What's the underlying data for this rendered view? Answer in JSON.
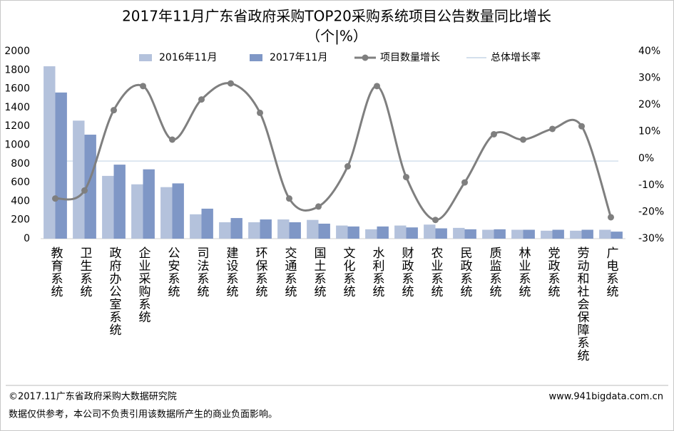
{
  "chart_data": {
    "type": "bar_line",
    "title": "2017年11月广东省政府采购TOP20采购系统项目公告数量同比增长",
    "subtitle": "（个|%）",
    "categories": [
      "教育系统",
      "卫生系统",
      "政府办公室系统",
      "企业采购系统",
      "公安系统",
      "司法系统",
      "建设系统",
      "环保系统",
      "交通系统",
      "国土系统",
      "文化系统",
      "水利系统",
      "财政系统",
      "农业系统",
      "民政系统",
      "质监系统",
      "林业系统",
      "党政系统",
      "劳动和社会保障系统",
      "广电系统"
    ],
    "series": [
      {
        "name": "2016年11月",
        "type": "bar",
        "color": "#b4c2dc",
        "values": [
          1840,
          1260,
          670,
          580,
          550,
          260,
          175,
          175,
          205,
          200,
          140,
          100,
          140,
          150,
          115,
          95,
          95,
          85,
          85,
          95
        ]
      },
      {
        "name": "2017年11月",
        "type": "bar",
        "color": "#7f97c6",
        "values": [
          1560,
          1110,
          790,
          740,
          590,
          320,
          220,
          205,
          175,
          160,
          130,
          130,
          120,
          110,
          100,
          100,
          95,
          95,
          95,
          75
        ]
      },
      {
        "name": "项目数量增长",
        "type": "line",
        "axis": "y2",
        "color": "#7f7f7f",
        "values": [
          -15,
          -12,
          18,
          27,
          7,
          22,
          28,
          17,
          -15,
          -18,
          -3,
          27,
          -7,
          -23,
          -9,
          9,
          7,
          11,
          12,
          -22
        ]
      }
    ],
    "reference_line": {
      "name": "总体增长率",
      "axis": "y2",
      "color": "#c5d6e6",
      "value": -1
    },
    "ylim": [
      0,
      2000
    ],
    "yticks": [
      0,
      200,
      400,
      600,
      800,
      1000,
      1200,
      1400,
      1600,
      1800,
      2000
    ],
    "y2lim": [
      -30,
      40
    ],
    "y2ticks": [
      {
        "value": -30,
        "label": "-30%"
      },
      {
        "value": -20,
        "label": "-20%"
      },
      {
        "value": -10,
        "label": "-10%"
      },
      {
        "value": 0,
        "label": "0%"
      },
      {
        "value": 10,
        "label": "10%"
      },
      {
        "value": 20,
        "label": "20%"
      },
      {
        "value": 30,
        "label": "30%"
      },
      {
        "value": 40,
        "label": "40%"
      }
    ],
    "legend": "top"
  },
  "footer": {
    "copyright": "©2017.11广东省政府采购大数据研究院",
    "website": "www.941bigdata.com.cn",
    "disclaimer": "数据仅供参考，本公司不负责引用该数据所产生的商业负面影响。"
  }
}
